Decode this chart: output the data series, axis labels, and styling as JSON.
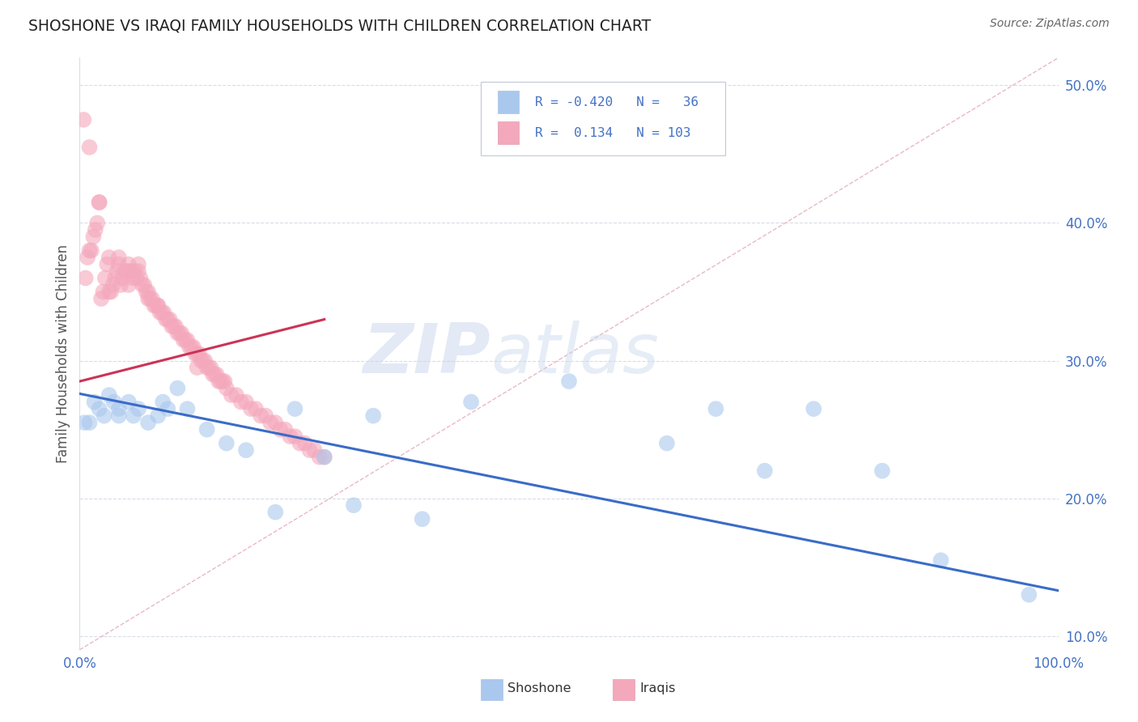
{
  "title": "SHOSHONE VS IRAQI FAMILY HOUSEHOLDS WITH CHILDREN CORRELATION CHART",
  "source": "Source: ZipAtlas.com",
  "ylabel": "Family Households with Children",
  "xmin": 0.0,
  "xmax": 1.0,
  "ymin": 0.09,
  "ymax": 0.52,
  "yticks": [
    0.1,
    0.2,
    0.3,
    0.4,
    0.5
  ],
  "shoshone_color": "#aac8ee",
  "iraqi_color": "#f4a8bc",
  "shoshone_line_color": "#3a6cc8",
  "iraqi_line_color": "#cc3355",
  "ref_line_color": "#e8b0c0",
  "background_color": "#ffffff",
  "grid_color": "#d8dce8",
  "watermark_zip": "ZIP",
  "watermark_atlas": "atlas",
  "shoshone_x": [
    0.005,
    0.01,
    0.015,
    0.02,
    0.025,
    0.03,
    0.035,
    0.04,
    0.04,
    0.05,
    0.055,
    0.06,
    0.07,
    0.08,
    0.085,
    0.09,
    0.1,
    0.11,
    0.13,
    0.15,
    0.17,
    0.2,
    0.22,
    0.25,
    0.28,
    0.3,
    0.35,
    0.4,
    0.5,
    0.6,
    0.65,
    0.7,
    0.75,
    0.82,
    0.88,
    0.97
  ],
  "shoshone_y": [
    0.255,
    0.255,
    0.27,
    0.265,
    0.26,
    0.275,
    0.27,
    0.265,
    0.26,
    0.27,
    0.26,
    0.265,
    0.255,
    0.26,
    0.27,
    0.265,
    0.28,
    0.265,
    0.25,
    0.24,
    0.235,
    0.19,
    0.265,
    0.23,
    0.195,
    0.26,
    0.185,
    0.27,
    0.285,
    0.24,
    0.265,
    0.22,
    0.265,
    0.22,
    0.155,
    0.13
  ],
  "iraqi_x": [
    0.004,
    0.006,
    0.008,
    0.01,
    0.012,
    0.014,
    0.016,
    0.018,
    0.02,
    0.022,
    0.024,
    0.026,
    0.028,
    0.03,
    0.032,
    0.034,
    0.036,
    0.038,
    0.04,
    0.042,
    0.044,
    0.046,
    0.048,
    0.05,
    0.052,
    0.054,
    0.056,
    0.058,
    0.06,
    0.062,
    0.064,
    0.066,
    0.068,
    0.07,
    0.072,
    0.074,
    0.076,
    0.078,
    0.08,
    0.082,
    0.084,
    0.086,
    0.088,
    0.09,
    0.092,
    0.094,
    0.096,
    0.098,
    0.1,
    0.102,
    0.104,
    0.106,
    0.108,
    0.11,
    0.112,
    0.114,
    0.116,
    0.118,
    0.12,
    0.122,
    0.124,
    0.126,
    0.128,
    0.13,
    0.132,
    0.134,
    0.136,
    0.138,
    0.14,
    0.142,
    0.144,
    0.146,
    0.148,
    0.15,
    0.155,
    0.16,
    0.165,
    0.17,
    0.175,
    0.18,
    0.185,
    0.19,
    0.195,
    0.2,
    0.205,
    0.21,
    0.215,
    0.22,
    0.225,
    0.23,
    0.235,
    0.24,
    0.245,
    0.25,
    0.01,
    0.02,
    0.03,
    0.04,
    0.05,
    0.06,
    0.07,
    0.08,
    0.12
  ],
  "iraqi_y": [
    0.475,
    0.36,
    0.375,
    0.455,
    0.38,
    0.39,
    0.395,
    0.4,
    0.415,
    0.345,
    0.35,
    0.36,
    0.37,
    0.375,
    0.35,
    0.355,
    0.36,
    0.365,
    0.375,
    0.355,
    0.36,
    0.365,
    0.365,
    0.37,
    0.365,
    0.36,
    0.365,
    0.36,
    0.365,
    0.36,
    0.355,
    0.355,
    0.35,
    0.345,
    0.345,
    0.345,
    0.34,
    0.34,
    0.34,
    0.335,
    0.335,
    0.335,
    0.33,
    0.33,
    0.33,
    0.325,
    0.325,
    0.325,
    0.32,
    0.32,
    0.32,
    0.315,
    0.315,
    0.315,
    0.31,
    0.31,
    0.31,
    0.305,
    0.305,
    0.305,
    0.3,
    0.3,
    0.3,
    0.295,
    0.295,
    0.295,
    0.29,
    0.29,
    0.29,
    0.285,
    0.285,
    0.285,
    0.285,
    0.28,
    0.275,
    0.275,
    0.27,
    0.27,
    0.265,
    0.265,
    0.26,
    0.26,
    0.255,
    0.255,
    0.25,
    0.25,
    0.245,
    0.245,
    0.24,
    0.24,
    0.235,
    0.235,
    0.23,
    0.23,
    0.38,
    0.415,
    0.35,
    0.37,
    0.355,
    0.37,
    0.35,
    0.34,
    0.295
  ],
  "shoshone_trend_x": [
    0.0,
    1.0
  ],
  "shoshone_trend_y": [
    0.276,
    0.133
  ],
  "iraqi_trend_x": [
    0.0,
    0.25
  ],
  "iraqi_trend_y": [
    0.285,
    0.33
  ],
  "ref_line_x": [
    0.0,
    1.0
  ],
  "ref_line_y": [
    0.09,
    0.52
  ]
}
